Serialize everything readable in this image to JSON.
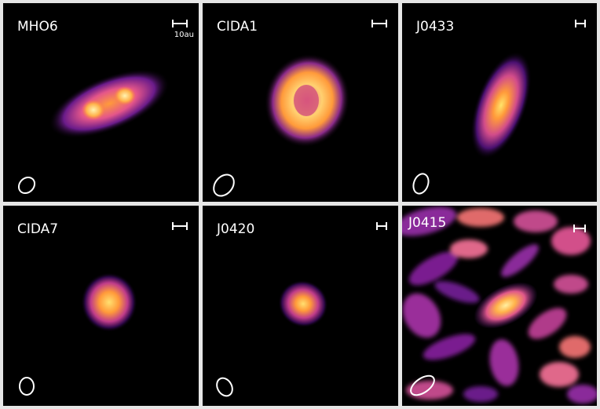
{
  "panels": [
    {
      "name": "MHO6",
      "scale_label": "10au"
    },
    {
      "name": "CIDA1",
      "scale_label": ""
    },
    {
      "name": "J0433",
      "scale_label": ""
    },
    {
      "name": "CIDA7",
      "scale_label": ""
    },
    {
      "name": "J0420",
      "scale_label": ""
    },
    {
      "name": "J0415",
      "scale_label": ""
    }
  ],
  "colors": {
    "background": "#000000",
    "frame": "#e6e6e6",
    "beam": "#ffffff"
  }
}
